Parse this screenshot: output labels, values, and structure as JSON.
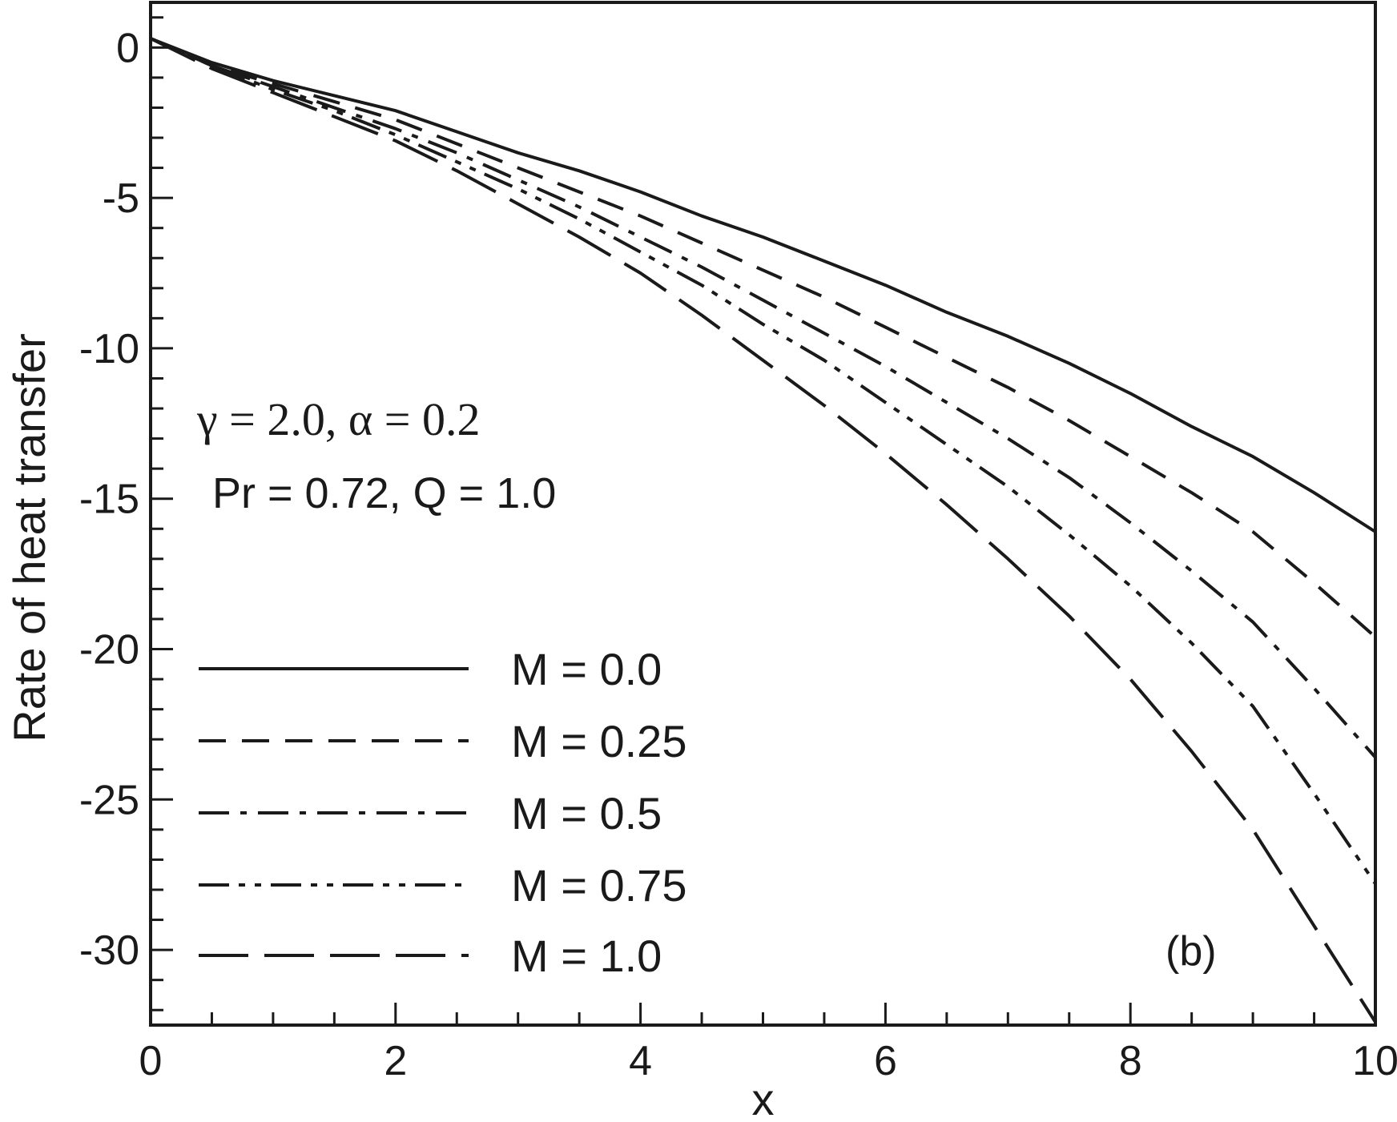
{
  "chart_data": {
    "type": "line",
    "title": "",
    "xlabel": "x",
    "ylabel": "Rate of heat transfer",
    "xlim": [
      0,
      10
    ],
    "ylim": [
      -32.5,
      1.5
    ],
    "x_ticks": [
      0,
      2,
      4,
      6,
      8,
      10
    ],
    "x_tick_labels": [
      "0",
      "2",
      "4",
      "6",
      "8",
      "10"
    ],
    "y_ticks": [
      0,
      -5,
      -10,
      -15,
      -20,
      -25,
      -30
    ],
    "y_tick_labels": [
      "0",
      "-5",
      "-10",
      "-15",
      "-20",
      "-25",
      "-30"
    ],
    "grid": false,
    "legend_position": "bottom-left",
    "annotations": [
      "γ = 2.0, α = 0.2",
      "Pr = 0.72, Q = 1.0",
      "(b)"
    ],
    "x": [
      0,
      0.5,
      1,
      1.5,
      2,
      2.5,
      3,
      3.5,
      4,
      4.5,
      5,
      5.5,
      6,
      6.5,
      7,
      7.5,
      8,
      8.5,
      9,
      9.5,
      10
    ],
    "series": [
      {
        "name": "M = 0.0",
        "style": "solid",
        "values": [
          0.3,
          -0.5,
          -1.1,
          -1.6,
          -2.1,
          -2.8,
          -3.5,
          -4.1,
          -4.8,
          -5.6,
          -6.3,
          -7.1,
          -7.9,
          -8.8,
          -9.6,
          -10.5,
          -11.5,
          -12.6,
          -13.6,
          -14.8,
          -16.1
        ]
      },
      {
        "name": "M = 0.25",
        "style": "dashed",
        "values": [
          0.3,
          -0.6,
          -1.2,
          -1.8,
          -2.4,
          -3.2,
          -4.0,
          -4.8,
          -5.6,
          -6.5,
          -7.4,
          -8.3,
          -9.3,
          -10.3,
          -11.3,
          -12.4,
          -13.6,
          -14.8,
          -16.1,
          -17.8,
          -19.6
        ]
      },
      {
        "name": "M = 0.5",
        "style": "dash-dot",
        "values": [
          0.3,
          -0.6,
          -1.3,
          -2.0,
          -2.7,
          -3.5,
          -4.4,
          -5.3,
          -6.3,
          -7.3,
          -8.4,
          -9.5,
          -10.6,
          -11.8,
          -13.0,
          -14.3,
          -15.8,
          -17.4,
          -19.1,
          -21.3,
          -23.6
        ]
      },
      {
        "name": "M = 0.75",
        "style": "dash-dot-dot",
        "values": [
          0.3,
          -0.6,
          -1.4,
          -2.1,
          -2.9,
          -3.8,
          -4.7,
          -5.7,
          -6.8,
          -7.9,
          -9.2,
          -10.4,
          -11.8,
          -13.2,
          -14.6,
          -16.2,
          -17.9,
          -19.8,
          -21.9,
          -24.8,
          -27.8
        ]
      },
      {
        "name": "M = 1.0",
        "style": "long-dash",
        "values": [
          0.3,
          -0.7,
          -1.5,
          -2.3,
          -3.1,
          -4.1,
          -5.2,
          -6.3,
          -7.5,
          -8.9,
          -10.4,
          -11.9,
          -13.5,
          -15.2,
          -17.0,
          -18.9,
          -21.0,
          -23.4,
          -26.0,
          -29.2,
          -32.4
        ]
      }
    ]
  }
}
